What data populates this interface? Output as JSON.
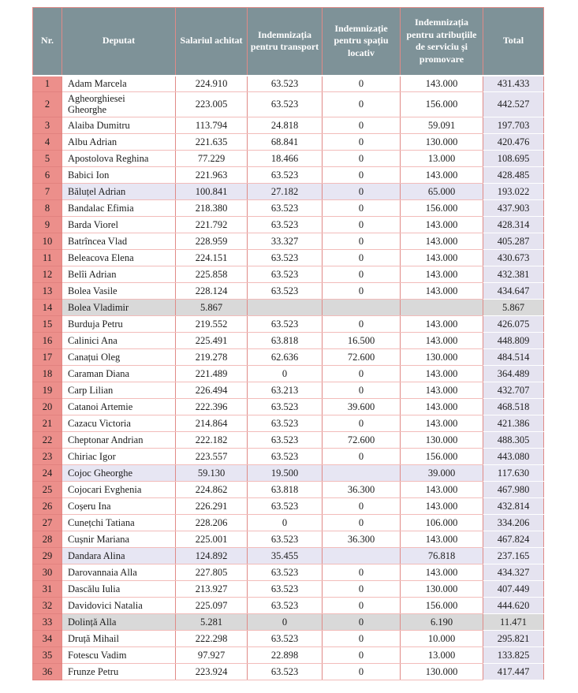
{
  "colors": {
    "header_bg": "#7e9298",
    "header_text": "#ffffff",
    "nr_column_bg": "#ec8f8b",
    "row_highlight_lavender": "#e7e6f3",
    "row_highlight_gray": "#d9d9d9",
    "total_column_bg": "#e5e3f0",
    "border_vertical": "#e08a87",
    "border_horizontal": "#f2bcba",
    "text": "#1c1c1c"
  },
  "table": {
    "columns": [
      {
        "key": "nr",
        "label": "Nr."
      },
      {
        "key": "deputat",
        "label": "Deputat"
      },
      {
        "key": "salariu",
        "label": "Salariul achitat"
      },
      {
        "key": "transport",
        "label": "Indemnizația pentru transport"
      },
      {
        "key": "spatiu",
        "label": "Indemnizație pentru spațiu locativ"
      },
      {
        "key": "atributii",
        "label": "Indemnizația pentru atribuțiile de serviciu și promovare"
      },
      {
        "key": "total",
        "label": "Total"
      }
    ],
    "rows": [
      {
        "nr": "1",
        "deputat": "Adam Marcela",
        "salariu": "224.910",
        "transport": "63.523",
        "spatiu": "0",
        "atributii": "143.000",
        "total": "431.433",
        "highlight": ""
      },
      {
        "nr": "2",
        "deputat": "Agheorghiesei Gheorghe",
        "salariu": "223.005",
        "transport": "63.523",
        "spatiu": "0",
        "atributii": "156.000",
        "total": "442.527",
        "highlight": ""
      },
      {
        "nr": "3",
        "deputat": "Alaiba Dumitru",
        "salariu": "113.794",
        "transport": "24.818",
        "spatiu": "0",
        "atributii": "59.091",
        "total": "197.703",
        "highlight": ""
      },
      {
        "nr": "4",
        "deputat": "Albu Adrian",
        "salariu": "221.635",
        "transport": "68.841",
        "spatiu": "0",
        "atributii": "130.000",
        "total": "420.476",
        "highlight": ""
      },
      {
        "nr": "5",
        "deputat": "Apostolova Reghina",
        "salariu": "77.229",
        "transport": "18.466",
        "spatiu": "0",
        "atributii": "13.000",
        "total": "108.695",
        "highlight": ""
      },
      {
        "nr": "6",
        "deputat": "Babici Ion",
        "salariu": "221.963",
        "transport": "63.523",
        "spatiu": "0",
        "atributii": "143.000",
        "total": "428.485",
        "highlight": ""
      },
      {
        "nr": "7",
        "deputat": "Băluțel Adrian",
        "salariu": "100.841",
        "transport": "27.182",
        "spatiu": "0",
        "atributii": "65.000",
        "total": "193.022",
        "highlight": "lavender"
      },
      {
        "nr": "8",
        "deputat": "Bandalac Efimia",
        "salariu": "218.380",
        "transport": "63.523",
        "spatiu": "0",
        "atributii": "156.000",
        "total": "437.903",
        "highlight": ""
      },
      {
        "nr": "9",
        "deputat": "Barda Viorel",
        "salariu": "221.792",
        "transport": "63.523",
        "spatiu": "0",
        "atributii": "143.000",
        "total": "428.314",
        "highlight": ""
      },
      {
        "nr": "10",
        "deputat": "Batrîncea Vlad",
        "salariu": "228.959",
        "transport": "33.327",
        "spatiu": "0",
        "atributii": "143.000",
        "total": "405.287",
        "highlight": ""
      },
      {
        "nr": "11",
        "deputat": "Beleacova Elena",
        "salariu": "224.151",
        "transport": "63.523",
        "spatiu": "0",
        "atributii": "143.000",
        "total": "430.673",
        "highlight": ""
      },
      {
        "nr": "12",
        "deputat": "Belîi Adrian",
        "salariu": "225.858",
        "transport": "63.523",
        "spatiu": "0",
        "atributii": "143.000",
        "total": "432.381",
        "highlight": ""
      },
      {
        "nr": "13",
        "deputat": "Bolea Vasile",
        "salariu": "228.124",
        "transport": "63.523",
        "spatiu": "0",
        "atributii": "143.000",
        "total": "434.647",
        "highlight": ""
      },
      {
        "nr": "14",
        "deputat": "Bolea Vladimir",
        "salariu": "5.867",
        "transport": "",
        "spatiu": "",
        "atributii": "",
        "total": "5.867",
        "highlight": "gray"
      },
      {
        "nr": "15",
        "deputat": "Burduja Petru",
        "salariu": "219.552",
        "transport": "63.523",
        "spatiu": "0",
        "atributii": "143.000",
        "total": "426.075",
        "highlight": ""
      },
      {
        "nr": "16",
        "deputat": "Calinici Ana",
        "salariu": "225.491",
        "transport": "63.818",
        "spatiu": "16.500",
        "atributii": "143.000",
        "total": "448.809",
        "highlight": ""
      },
      {
        "nr": "17",
        "deputat": "Canațui Oleg",
        "salariu": "219.278",
        "transport": "62.636",
        "spatiu": "72.600",
        "atributii": "130.000",
        "total": "484.514",
        "highlight": ""
      },
      {
        "nr": "18",
        "deputat": "Caraman Diana",
        "salariu": "221.489",
        "transport": "0",
        "spatiu": "0",
        "atributii": "143.000",
        "total": "364.489",
        "highlight": ""
      },
      {
        "nr": "19",
        "deputat": "Carp Lilian",
        "salariu": "226.494",
        "transport": "63.213",
        "spatiu": "0",
        "atributii": "143.000",
        "total": "432.707",
        "highlight": ""
      },
      {
        "nr": "20",
        "deputat": "Catanoi Artemie",
        "salariu": "222.396",
        "transport": "63.523",
        "spatiu": "39.600",
        "atributii": "143.000",
        "total": "468.518",
        "highlight": ""
      },
      {
        "nr": "21",
        "deputat": "Cazacu Victoria",
        "salariu": "214.864",
        "transport": "63.523",
        "spatiu": "0",
        "atributii": "143.000",
        "total": "421.386",
        "highlight": ""
      },
      {
        "nr": "22",
        "deputat": "Cheptonar Andrian",
        "salariu": "222.182",
        "transport": "63.523",
        "spatiu": "72.600",
        "atributii": "130.000",
        "total": "488.305",
        "highlight": ""
      },
      {
        "nr": "23",
        "deputat": "Chiriac Igor",
        "salariu": "223.557",
        "transport": "63.523",
        "spatiu": "0",
        "atributii": "156.000",
        "total": "443.080",
        "highlight": ""
      },
      {
        "nr": "24",
        "deputat": "Cojoc Gheorghe",
        "salariu": "59.130",
        "transport": "19.500",
        "spatiu": "",
        "atributii": "39.000",
        "total": "117.630",
        "highlight": "lavender"
      },
      {
        "nr": "25",
        "deputat": "Cojocari Evghenia",
        "salariu": "224.862",
        "transport": "63.818",
        "spatiu": "36.300",
        "atributii": "143.000",
        "total": "467.980",
        "highlight": ""
      },
      {
        "nr": "26",
        "deputat": "Coșeru Ina",
        "salariu": "226.291",
        "transport": "63.523",
        "spatiu": "0",
        "atributii": "143.000",
        "total": "432.814",
        "highlight": ""
      },
      {
        "nr": "27",
        "deputat": "Cunețchi Tatiana",
        "salariu": "228.206",
        "transport": "0",
        "spatiu": "0",
        "atributii": "106.000",
        "total": "334.206",
        "highlight": ""
      },
      {
        "nr": "28",
        "deputat": "Cușnir Mariana",
        "salariu": "225.001",
        "transport": "63.523",
        "spatiu": "36.300",
        "atributii": "143.000",
        "total": "467.824",
        "highlight": ""
      },
      {
        "nr": "29",
        "deputat": "Dandara Alina",
        "salariu": "124.892",
        "transport": "35.455",
        "spatiu": "",
        "atributii": "76.818",
        "total": "237.165",
        "highlight": "lavender"
      },
      {
        "nr": "30",
        "deputat": "Darovannaia Alla",
        "salariu": "227.805",
        "transport": "63.523",
        "spatiu": "0",
        "atributii": "143.000",
        "total": "434.327",
        "highlight": ""
      },
      {
        "nr": "31",
        "deputat": "Dascălu Iulia",
        "salariu": "213.927",
        "transport": "63.523",
        "spatiu": "0",
        "atributii": "130.000",
        "total": "407.449",
        "highlight": ""
      },
      {
        "nr": "32",
        "deputat": "Davidovici Natalia",
        "salariu": "225.097",
        "transport": "63.523",
        "spatiu": "0",
        "atributii": "156.000",
        "total": "444.620",
        "highlight": ""
      },
      {
        "nr": "33",
        "deputat": "Dolință Alla",
        "salariu": "5.281",
        "transport": "0",
        "spatiu": "0",
        "atributii": "6.190",
        "total": "11.471",
        "highlight": "gray"
      },
      {
        "nr": "34",
        "deputat": "Druță Mihail",
        "salariu": "222.298",
        "transport": "63.523",
        "spatiu": "0",
        "atributii": "10.000",
        "total": "295.821",
        "highlight": ""
      },
      {
        "nr": "35",
        "deputat": "Fotescu Vadim",
        "salariu": "97.927",
        "transport": "22.898",
        "spatiu": "0",
        "atributii": "13.000",
        "total": "133.825",
        "highlight": ""
      },
      {
        "nr": "36",
        "deputat": "Frunze Petru",
        "salariu": "223.924",
        "transport": "63.523",
        "spatiu": "0",
        "atributii": "130.000",
        "total": "417.447",
        "highlight": ""
      }
    ]
  }
}
